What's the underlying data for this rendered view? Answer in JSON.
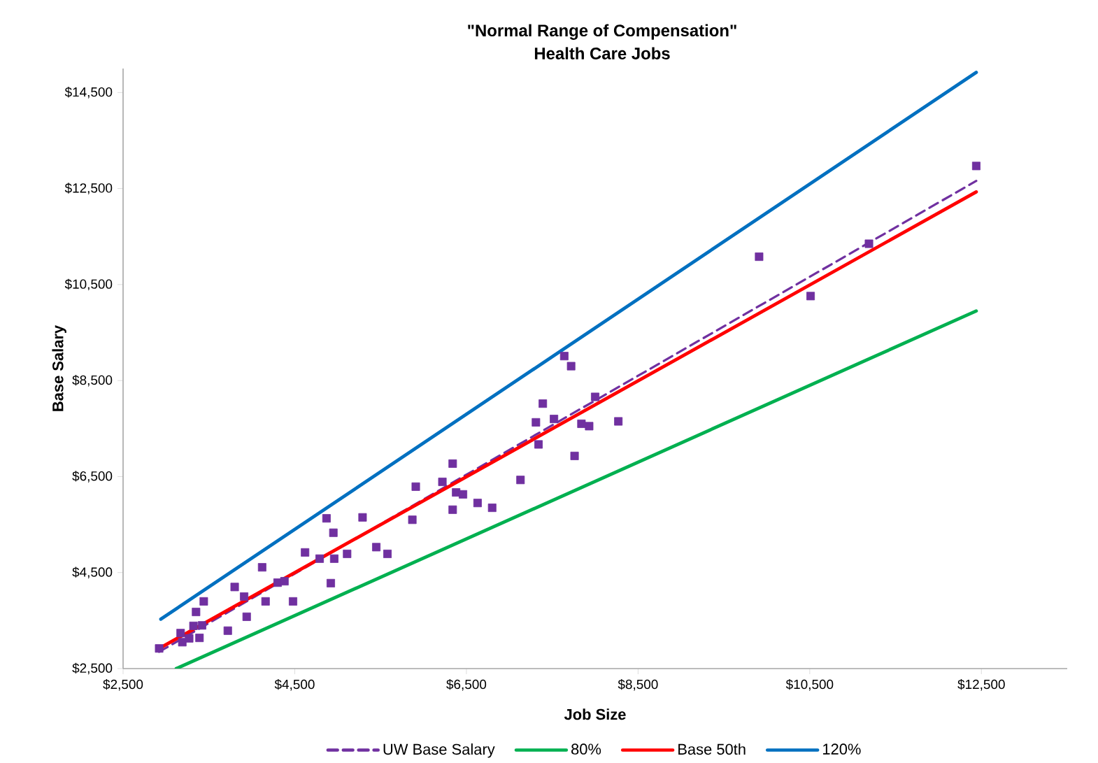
{
  "chart_data": {
    "type": "line",
    "title": "\"Normal Range of Compensation\"",
    "subtitle": "Health Care Jobs",
    "xlabel": "Job Size",
    "ylabel": "Base Salary",
    "xlim": [
      2500,
      13500
    ],
    "ylim": [
      2500,
      15000
    ],
    "xticks": [
      {
        "value": 2500,
        "label": "$2,500"
      },
      {
        "value": 4500,
        "label": "$4,500"
      },
      {
        "value": 6500,
        "label": "$6,500"
      },
      {
        "value": 8500,
        "label": "$8,500"
      },
      {
        "value": 10500,
        "label": "$10,500"
      },
      {
        "value": 12500,
        "label": "$12,500"
      }
    ],
    "yticks": [
      {
        "value": 2500,
        "label": "$2,500"
      },
      {
        "value": 4500,
        "label": "$4,500"
      },
      {
        "value": 6500,
        "label": "$6,500"
      },
      {
        "value": 8500,
        "label": "$8,500"
      },
      {
        "value": 10500,
        "label": "$10,500"
      },
      {
        "value": 12500,
        "label": "$12,500"
      },
      {
        "value": 14500,
        "label": "$14,500"
      }
    ],
    "legend": "bottom",
    "series": [
      {
        "type": "scatter",
        "marker": "square",
        "color": "#7030a0",
        "x": [
          2920,
          3170,
          3190,
          3270,
          3320,
          3350,
          3370,
          3390,
          3440,
          3420,
          3720,
          3800,
          3910,
          3940,
          4120,
          4160,
          4300,
          4380,
          4480,
          4620,
          4790,
          4870,
          4920,
          4950,
          4960,
          5110,
          5290,
          5450,
          5580,
          5870,
          5910,
          6220,
          6340,
          6340,
          6380,
          6460,
          6630,
          6800,
          7130,
          7310,
          7340,
          7390,
          7520,
          7640,
          7720,
          7760,
          7840,
          7930,
          8000,
          8270,
          9910,
          10510,
          11190,
          12440
        ],
        "values": [
          2920,
          3240,
          3050,
          3130,
          3390,
          3680,
          null,
          3140,
          3900,
          3400,
          3290,
          4200,
          4000,
          3580,
          4610,
          3900,
          4290,
          4320,
          3900,
          4920,
          4790,
          5630,
          4280,
          5330,
          4790,
          4890,
          5650,
          5030,
          4890,
          5600,
          6290,
          6390,
          6770,
          5810,
          6170,
          6130,
          5950,
          5850,
          6430,
          7630,
          7170,
          8020,
          7700,
          9010,
          8800,
          6930,
          7600,
          7550,
          8160,
          7650,
          11080,
          10260,
          11350,
          12970
        ]
      },
      {
        "name": "UW Base Salary",
        "color": "#7030a0",
        "line_style": "dashed",
        "x": [
          2920,
          12440
        ],
        "values": [
          2850,
          12660
        ]
      },
      {
        "name": "80%",
        "color": "#00b050",
        "x": [
          3120,
          12440
        ],
        "values": [
          2500,
          9950
        ]
      },
      {
        "name": "Base 50th",
        "color": "#ff0000",
        "x": [
          2940,
          12440
        ],
        "values": [
          2940,
          12430
        ]
      },
      {
        "name": "120%",
        "color": "#0070c0",
        "x": [
          2940,
          12440
        ],
        "values": [
          3530,
          14920
        ]
      }
    ]
  }
}
